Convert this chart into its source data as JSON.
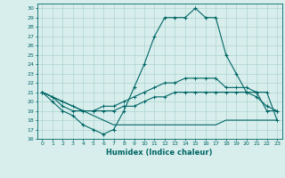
{
  "title": "",
  "xlabel": "Humidex (Indice chaleur)",
  "background_color": "#d8eeec",
  "grid_color": "#aed4d0",
  "line_color": "#006666",
  "xlim": [
    -0.5,
    23.5
  ],
  "ylim": [
    16,
    30.5
  ],
  "x_ticks": [
    0,
    1,
    2,
    3,
    4,
    5,
    6,
    7,
    8,
    9,
    10,
    11,
    12,
    13,
    14,
    15,
    16,
    17,
    18,
    19,
    20,
    21,
    22,
    23
  ],
  "y_ticks": [
    16,
    17,
    18,
    19,
    20,
    21,
    22,
    23,
    24,
    25,
    26,
    27,
    28,
    29,
    30
  ],
  "main_line": [
    21,
    20,
    19,
    18.5,
    17.5,
    17,
    16.5,
    17,
    19,
    21.5,
    24,
    27,
    29,
    29,
    29,
    30,
    29,
    29,
    25,
    23,
    21,
    20.5,
    19.5,
    19
  ],
  "line2": [
    21,
    20.5,
    19.5,
    19,
    19,
    19,
    19.5,
    19.5,
    20,
    20.5,
    21,
    21.5,
    22,
    22,
    22.5,
    22.5,
    22.5,
    22.5,
    21.5,
    21.5,
    21.5,
    21,
    19,
    19
  ],
  "line3": [
    21,
    20.5,
    20,
    19.5,
    19,
    19,
    19,
    19,
    19.5,
    19.5,
    20,
    20.5,
    20.5,
    21,
    21,
    21,
    21,
    21,
    21,
    21,
    21,
    21,
    21,
    18
  ],
  "line4": [
    21,
    20.5,
    20,
    19.5,
    19,
    18.5,
    18,
    17.5,
    17.5,
    17.5,
    17.5,
    17.5,
    17.5,
    17.5,
    17.5,
    17.5,
    17.5,
    17.5,
    18,
    18,
    18,
    18,
    18,
    18
  ]
}
